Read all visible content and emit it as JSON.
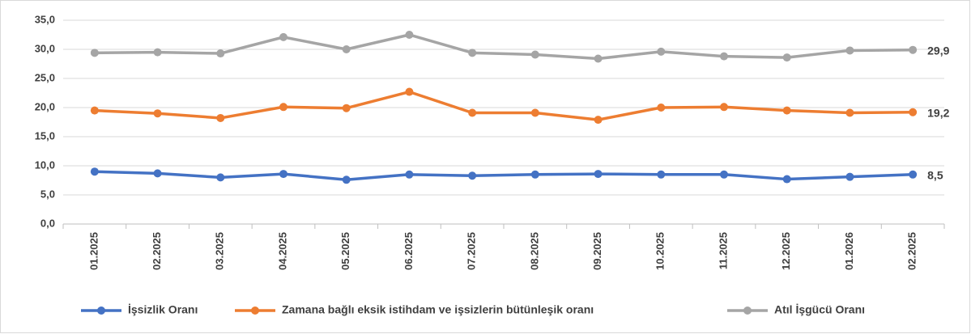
{
  "chart_data": {
    "type": "line",
    "categories": [
      "01.2025",
      "02.2025",
      "03.2025",
      "04.2025",
      "05.2025",
      "06.2025",
      "07.2025",
      "08.2025",
      "09.2025",
      "10.2025",
      "11.2025",
      "12.2025",
      "01.2026",
      "02.2025"
    ],
    "series": [
      {
        "name": "İşsizlik Oranı",
        "color": "#4472c4",
        "values": [
          9.0,
          8.7,
          8.0,
          8.6,
          7.6,
          8.5,
          8.3,
          8.5,
          8.6,
          8.5,
          8.5,
          7.7,
          8.1,
          8.5
        ],
        "value_labels": [
          null,
          null,
          null,
          null,
          null,
          null,
          null,
          null,
          null,
          null,
          null,
          null,
          null,
          "8,5"
        ]
      },
      {
        "name": "Zamana bağlı eksik istihdam ve işsizlerin bütünleşik oranı",
        "color": "#ed7d31",
        "values": [
          19.5,
          19.0,
          18.2,
          20.1,
          19.9,
          22.7,
          19.1,
          19.1,
          17.9,
          20.0,
          20.1,
          19.5,
          19.1,
          19.2
        ],
        "value_labels": [
          null,
          null,
          null,
          null,
          null,
          null,
          null,
          null,
          null,
          null,
          null,
          null,
          null,
          "19,2"
        ]
      },
      {
        "name": "Atıl İşgücü Oranı",
        "color": "#a5a5a5",
        "values": [
          29.4,
          29.5,
          29.3,
          32.1,
          30.0,
          32.5,
          29.4,
          29.1,
          28.4,
          29.6,
          28.8,
          28.6,
          29.8,
          29.9
        ],
        "value_labels": [
          null,
          null,
          null,
          null,
          null,
          null,
          null,
          null,
          null,
          null,
          null,
          null,
          null,
          "29,9"
        ]
      }
    ],
    "ylim": [
      0,
      35
    ],
    "yticks": [
      {
        "value": 0,
        "label": "0,0"
      },
      {
        "value": 5,
        "label": "5,0"
      },
      {
        "value": 10,
        "label": "10,0"
      },
      {
        "value": 15,
        "label": "15,0"
      },
      {
        "value": 20,
        "label": "20,0"
      },
      {
        "value": 25,
        "label": "25,0"
      },
      {
        "value": 30,
        "label": "30,0"
      },
      {
        "value": 35,
        "label": "35,0"
      }
    ],
    "grid": true,
    "legend": "bottom"
  }
}
